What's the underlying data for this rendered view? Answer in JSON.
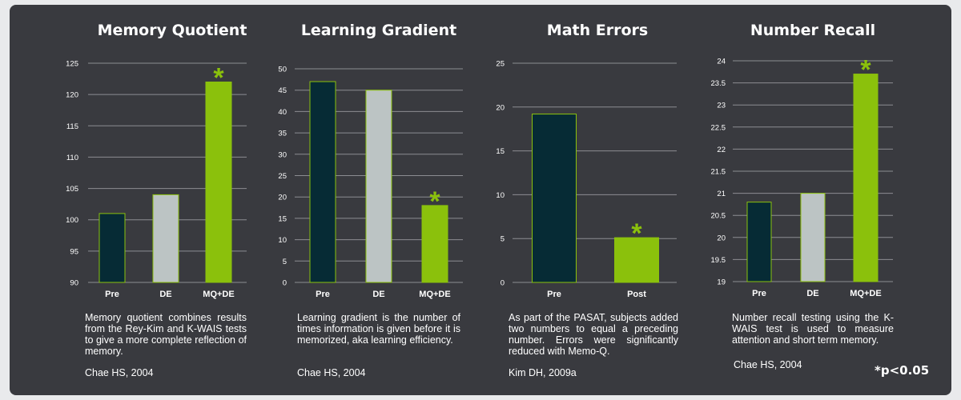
{
  "colors": {
    "panel": "#393a3f",
    "dark": "#062b35",
    "light": "#bcc4c4",
    "green": "#8bc10c",
    "grid": "#8c8d92",
    "text": "#ffffff"
  },
  "significance_note": "*p<0.05",
  "chart_data": [
    {
      "type": "bar",
      "title": "Memory Quotient",
      "categories": [
        "Pre",
        "DE",
        "MQ+DE"
      ],
      "values": [
        101,
        104,
        122
      ],
      "ylim": [
        90,
        125
      ],
      "yticks": [
        "90",
        "95",
        "100",
        "105",
        "110",
        "115",
        "120",
        "125"
      ],
      "significant": [
        false,
        false,
        true
      ],
      "asterisk": "*",
      "caption": "Memory quotient combines results from the Rey-Kim and K-WAIS tests to give a more complete reflection of memory.",
      "source": "Chae HS, 2004",
      "grid": true
    },
    {
      "type": "bar",
      "title": "Learning Gradient",
      "categories": [
        "Pre",
        "DE",
        "MQ+DE"
      ],
      "values": [
        47,
        45,
        18
      ],
      "ylim": [
        0,
        50
      ],
      "yticks": [
        "0",
        "5",
        "10",
        "15",
        "20",
        "25",
        "30",
        "35",
        "40",
        "45",
        "50"
      ],
      "significant": [
        false,
        false,
        true
      ],
      "asterisk": "*",
      "caption": "Learning gradient is the number of times information is given before it is memorized, aka learning efficiency.",
      "source": "Chae HS, 2004",
      "grid": true
    },
    {
      "type": "bar",
      "title": "Math Errors",
      "categories": [
        "Pre",
        "Post"
      ],
      "values": [
        19.2,
        5.1
      ],
      "ylim": [
        0,
        25
      ],
      "yticks": [
        "0",
        "5",
        "10",
        "15",
        "20",
        "25"
      ],
      "significant": [
        false,
        true
      ],
      "asterisk": "*",
      "caption": "As part of the PASAT, subjects added two numbers to equal a preceding number. Errors were significantly reduced with Memo-Q.",
      "source": "Kim DH, 2009a",
      "grid": true
    },
    {
      "type": "bar",
      "title": "Number Recall",
      "categories": [
        "Pre",
        "DE",
        "MQ+DE"
      ],
      "values": [
        20.8,
        21,
        23.7
      ],
      "ylim": [
        19,
        24
      ],
      "yticks": [
        "19",
        "19.5",
        "20",
        "20.5",
        "21",
        "21.5",
        "22",
        "22.5",
        "23",
        "23.5",
        "24"
      ],
      "significant": [
        false,
        false,
        true
      ],
      "asterisk": "*",
      "caption": "Number recall testing using the K-WAIS test is used to measure attention and short term memory.",
      "source": "Chae HS, 2004",
      "grid": true
    }
  ]
}
